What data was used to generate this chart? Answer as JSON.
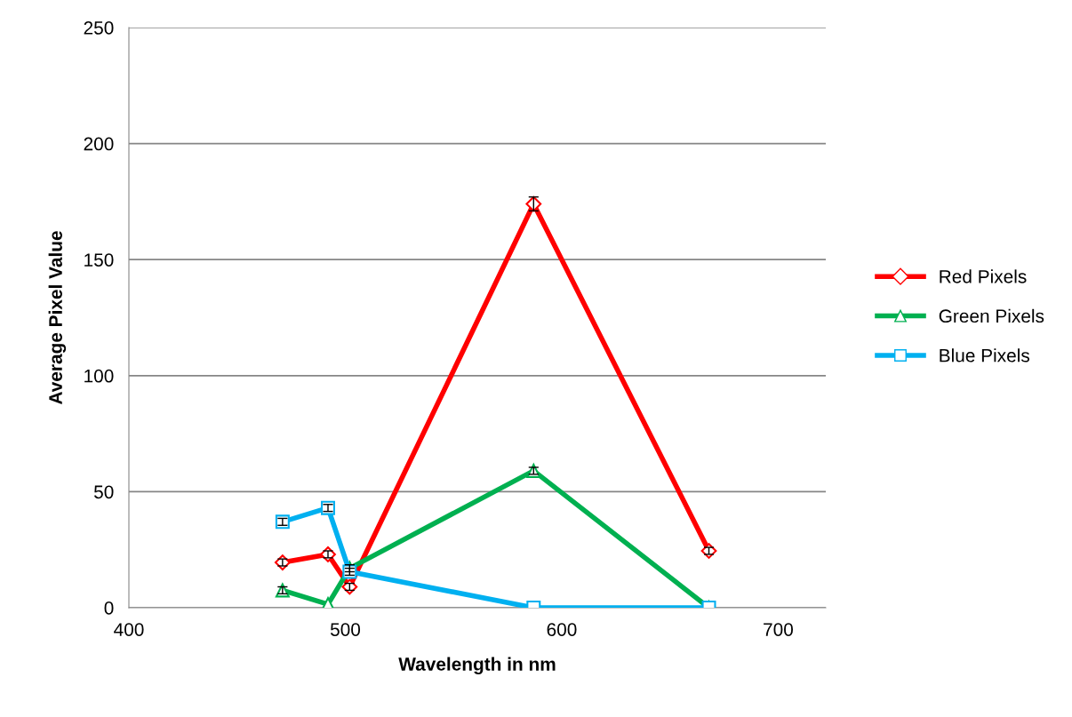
{
  "chart_data": {
    "type": "line",
    "xlabel": "Wavelength in nm",
    "ylabel": "Average Pixel Value",
    "x": [
      471,
      492,
      502,
      587,
      668
    ],
    "xlim": [
      400,
      722
    ],
    "xticks": [
      400,
      500,
      600,
      700
    ],
    "ylim": [
      0,
      250
    ],
    "yticks": [
      0,
      50,
      100,
      150,
      200,
      250
    ],
    "grid": "y",
    "legend": "right",
    "line_style": "solid",
    "series": [
      {
        "name": "Red Pixels",
        "color": "#ff0000",
        "marker": "diamond",
        "values": [
          19.5,
          23,
          9,
          174,
          24.5
        ],
        "errors": [
          1.5,
          1.5,
          1.5,
          3,
          1.5
        ]
      },
      {
        "name": "Green Pixels",
        "color": "#00b050",
        "marker": "triangle",
        "values": [
          7.5,
          1.5,
          17,
          59,
          0
        ],
        "errors": [
          1.5,
          null,
          1.5,
          1.5,
          null
        ]
      },
      {
        "name": "Blue Pixels",
        "color": "#00b0f0",
        "marker": "square",
        "values": [
          37,
          43,
          15.5,
          0,
          0
        ],
        "errors": [
          1.5,
          1.5,
          1.5,
          null,
          null
        ]
      }
    ]
  }
}
